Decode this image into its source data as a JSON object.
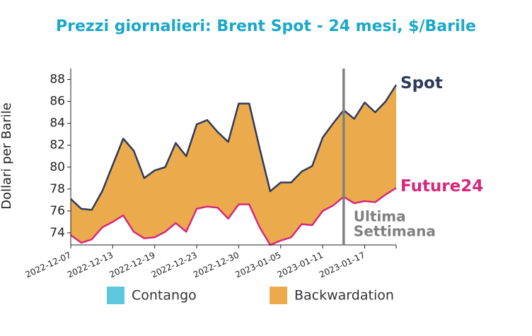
{
  "chart_data": {
    "type": "line",
    "title": "Prezzi giornalieri: Brent Spot - 24 mesi, $/Barile",
    "ylabel": "Dollari per Barile",
    "categories": [
      "2022-12-07",
      null,
      null,
      null,
      "2022-12-13",
      null,
      null,
      null,
      "2022-12-19",
      null,
      null,
      null,
      "2022-12-23",
      null,
      null,
      null,
      "2022-12-30",
      null,
      null,
      null,
      "2023-01-05",
      null,
      null,
      null,
      "2023-01-11",
      null,
      null,
      null,
      "2023-01-17",
      null,
      null,
      null
    ],
    "series": [
      {
        "name": "Spot",
        "color": "#2d3b5a",
        "values": [
          77.1,
          76.2,
          76.1,
          77.8,
          80.2,
          82.6,
          81.5,
          79.0,
          79.7,
          80.0,
          82.2,
          81.0,
          83.9,
          84.3,
          83.2,
          82.3,
          85.8,
          85.8,
          81.7,
          77.8,
          78.6,
          78.6,
          79.6,
          80.1,
          82.7,
          84.0,
          85.2,
          84.4,
          85.9,
          85.0,
          86.0,
          87.5
        ]
      },
      {
        "name": "Future24",
        "color": "#d6287a",
        "values": [
          73.8,
          73.1,
          73.4,
          74.5,
          75.0,
          75.6,
          74.1,
          73.5,
          73.6,
          74.1,
          74.9,
          74.1,
          76.2,
          76.4,
          76.3,
          75.3,
          76.6,
          76.6,
          74.5,
          72.9,
          73.3,
          73.6,
          74.8,
          74.7,
          76.0,
          76.5,
          77.3,
          76.7,
          76.9,
          76.8,
          77.5,
          78.1
        ]
      }
    ],
    "legend": [
      {
        "name": "Contango",
        "color": "#5bc8e0"
      },
      {
        "name": "Backwardation",
        "color": "#ebab4d"
      }
    ],
    "annotation": [
      "Ultima",
      "Settimana"
    ],
    "vline_color": "#808080",
    "ylim": [
      72.9,
      89
    ],
    "yticks": [
      74,
      76,
      78,
      80,
      82,
      84,
      86,
      88
    ]
  }
}
